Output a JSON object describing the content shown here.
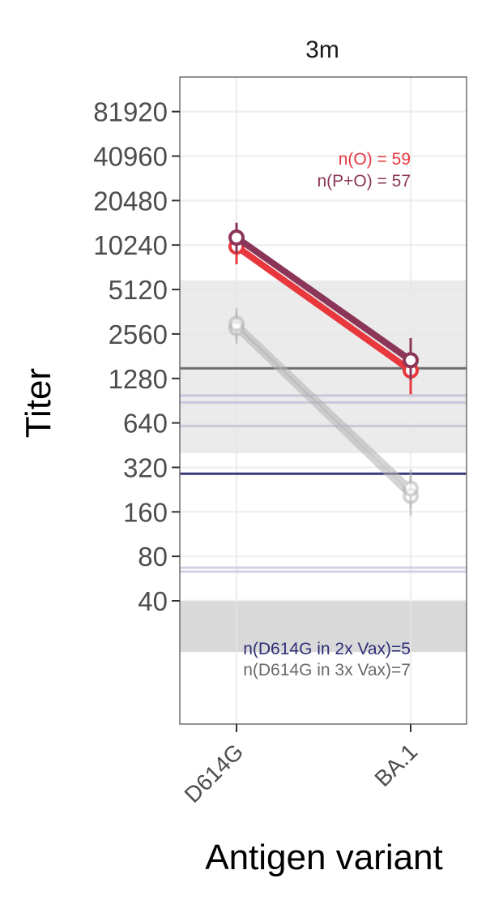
{
  "chart_data": {
    "type": "line",
    "facet_title": "3m",
    "xlabel": "Antigen variant",
    "ylabel": "Titer",
    "y_scale": "log2",
    "y_tick_labels": [
      "40",
      "80",
      "160",
      "320",
      "640",
      "1280",
      "2560",
      "5120",
      "10240",
      "20480",
      "40960",
      "81920"
    ],
    "ylim": [
      18,
      150000
    ],
    "categories": [
      "D614G",
      "BA.1"
    ],
    "grid": true,
    "series": [
      {
        "name": "P+O",
        "color": "#8b3658",
        "values": [
          11500,
          1700
        ],
        "error": [
          [
            9000,
            14500
          ],
          [
            1250,
            2400
          ]
        ]
      },
      {
        "name": "O",
        "color": "#e8383d",
        "values": [
          10000,
          1450
        ],
        "error": [
          [
            7600,
            12600
          ],
          [
            1000,
            2050
          ]
        ]
      },
      {
        "name": "",
        "color": "#b2b2b2",
        "values": [
          3000,
          230
        ],
        "error": [
          [
            2350,
            3850
          ],
          [
            170,
            310
          ]
        ]
      },
      {
        "name": "",
        "color": "#b2b2b2",
        "values": [
          2800,
          205
        ],
        "error": [
          [
            2200,
            3600
          ],
          [
            150,
            280
          ]
        ]
      }
    ],
    "annotations": [
      {
        "text": "n(O) = 59",
        "color": "#e8383d"
      },
      {
        "text": "n(P+O) = 57",
        "color": "#8b3658"
      },
      {
        "text": "n(D614G in 2x Vax)=5",
        "color": "#2e2e78"
      },
      {
        "text": "n(D614G in 3x Vax)=7",
        "color": "#6a6a6a"
      }
    ],
    "reference_lines": [
      {
        "value": 1500,
        "color": "#6e6e6e"
      },
      {
        "value": 290,
        "color": "#3a3a7a"
      },
      {
        "value": 980,
        "color": "#c8c8dc"
      },
      {
        "value": 880,
        "color": "#c8c8dc"
      },
      {
        "value": 610,
        "color": "#c8c8dc"
      },
      {
        "value": 67,
        "color": "#d0d0e6"
      },
      {
        "value": 63,
        "color": "#d0d0e6"
      }
    ],
    "shaded_bands": [
      {
        "from": 400,
        "to": 5900,
        "color": "#ebebeb"
      },
      {
        "from": 18,
        "to": 40,
        "color": "#d9d9d9"
      }
    ]
  }
}
